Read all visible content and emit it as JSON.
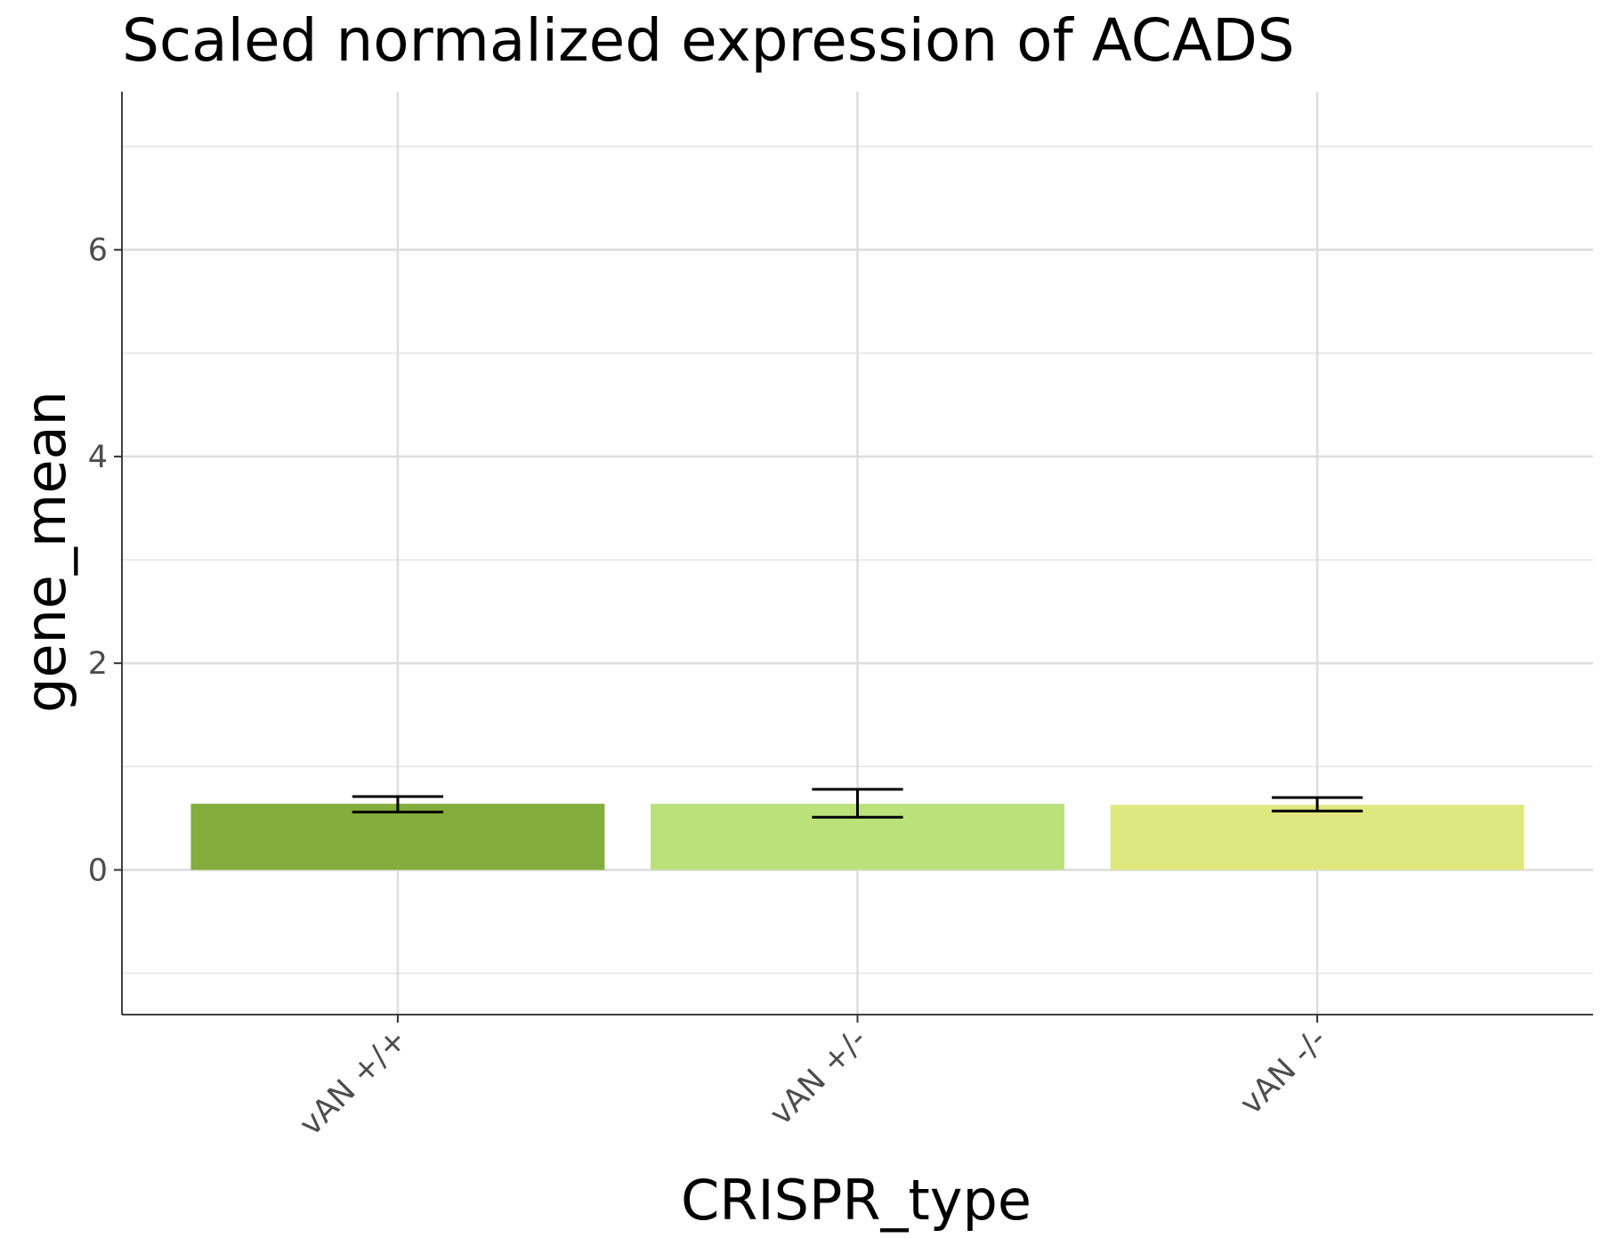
{
  "chart_data": {
    "type": "bar",
    "title": "Scaled normalized expression of ACADS",
    "xlabel": "CRISPR_type",
    "ylabel": "gene_mean",
    "categories": [
      "vAN +/+",
      "vAN +/-",
      "vAN -/-"
    ],
    "values": [
      0.64,
      0.64,
      0.63
    ],
    "error_low": [
      0.56,
      0.51,
      0.57
    ],
    "error_high": [
      0.71,
      0.78,
      0.7
    ],
    "colors": [
      "#83ad3c",
      "#bbe27a",
      "#dfe87f"
    ],
    "ylim": [
      -1.4,
      7.53
    ],
    "y_ticks": [
      0,
      2,
      4,
      6
    ],
    "y_tick_labels": [
      "0",
      "2",
      "4",
      "6"
    ],
    "grid": true,
    "legend": "none"
  }
}
